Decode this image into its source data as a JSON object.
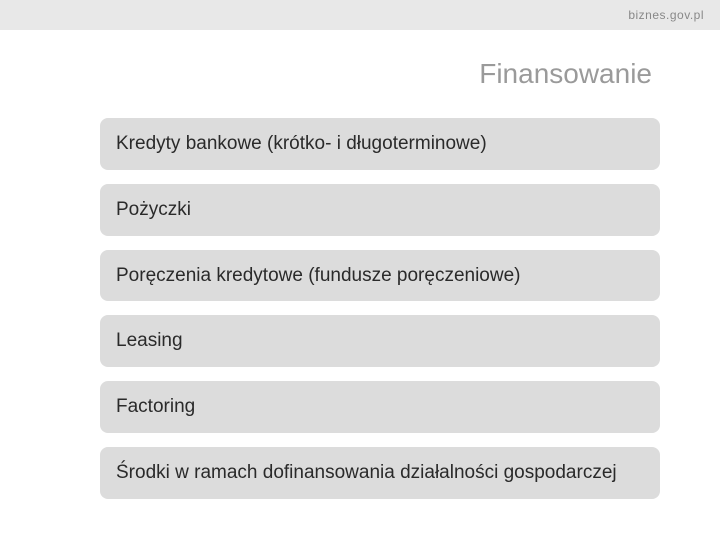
{
  "header": {
    "site_url": "biznes.gov.pl"
  },
  "page_title": "Finansowanie",
  "colors": {
    "header_bg": "#e8e8e8",
    "item_bg": "#dcdcdc",
    "title_color": "#9a9a9a",
    "text_color": "#2a2a2a",
    "url_color": "#888888",
    "page_bg": "#ffffff"
  },
  "typography": {
    "title_fontsize": 28,
    "item_fontsize": 19,
    "url_fontsize": 12,
    "font_family": "Arial"
  },
  "layout": {
    "item_radius": 8,
    "item_gap": 14,
    "item_padding_y": 14,
    "item_padding_x": 16
  },
  "items": [
    {
      "label": "Kredyty bankowe (krótko- i długoterminowe)"
    },
    {
      "label": "Pożyczki"
    },
    {
      "label": "Poręczenia kredytowe (fundusze poręczeniowe)"
    },
    {
      "label": "Leasing"
    },
    {
      "label": "Factoring"
    },
    {
      "label": "Środki w ramach dofinansowania działalności gospodarczej"
    }
  ]
}
